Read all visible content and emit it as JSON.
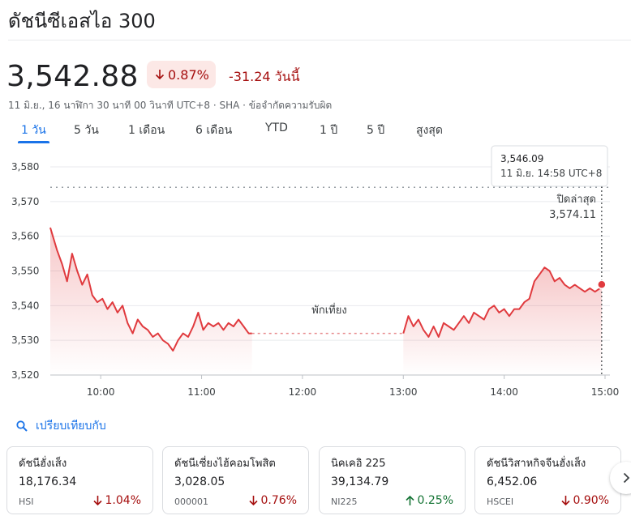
{
  "header": {
    "title": "ดัชนีซีเอสไอ 300"
  },
  "quote": {
    "price": "3,542.88",
    "change_pct": "0.87%",
    "change_abs": "-31.24 วันนี้",
    "meta": "11 มิ.ย., 16 นาฬิกา 30 นาที 00 วินาที UTC+8 · SHA · ข้อจำกัดความรับผิด"
  },
  "tabs": [
    {
      "label": "1 วัน",
      "active": true
    },
    {
      "label": "5 วัน",
      "active": false
    },
    {
      "label": "1 เดือน",
      "active": false
    },
    {
      "label": "6 เดือน",
      "active": false
    },
    {
      "label": "YTD",
      "active": false
    },
    {
      "label": "1 ปี",
      "active": false
    },
    {
      "label": "5 ปี",
      "active": false
    },
    {
      "label": "สูงสุด",
      "active": false
    }
  ],
  "colors": {
    "down": "#a50e0e",
    "up": "#137333",
    "line": "#e03a3e",
    "accent": "#1a73e8"
  },
  "chart_data": {
    "type": "line",
    "ylim": [
      3520,
      3580
    ],
    "y_ticks": [
      "3,520",
      "3,530",
      "3,540",
      "3,550",
      "3,560",
      "3,570",
      "3,580"
    ],
    "x_ticks": [
      "10:00",
      "11:00",
      "12:00",
      "13:00",
      "14:00",
      "15:00"
    ],
    "prev_close": 3574.11,
    "prev_close_label": "ปิดล่าสุด",
    "prev_close_value": "3,574.11",
    "break_label": "พักเที่ยง",
    "tooltip": {
      "value": "3,546.09",
      "time": "11 มิ.ย. 14:58 UTC+8"
    },
    "session1": [
      [
        "9:30",
        3562.5
      ],
      [
        "9:34",
        3556
      ],
      [
        "9:37",
        3552
      ],
      [
        "9:40",
        3547
      ],
      [
        "9:43",
        3555
      ],
      [
        "9:46",
        3550
      ],
      [
        "9:49",
        3546
      ],
      [
        "9:52",
        3549
      ],
      [
        "9:55",
        3543
      ],
      [
        "9:58",
        3541
      ],
      [
        "10:01",
        3542
      ],
      [
        "10:04",
        3539
      ],
      [
        "10:07",
        3541
      ],
      [
        "10:10",
        3538
      ],
      [
        "10:13",
        3540
      ],
      [
        "10:16",
        3535
      ],
      [
        "10:19",
        3532
      ],
      [
        "10:22",
        3536
      ],
      [
        "10:25",
        3534
      ],
      [
        "10:28",
        3533
      ],
      [
        "10:31",
        3531
      ],
      [
        "10:34",
        3532
      ],
      [
        "10:37",
        3530
      ],
      [
        "10:40",
        3529
      ],
      [
        "10:43",
        3527
      ],
      [
        "10:46",
        3530
      ],
      [
        "10:49",
        3532
      ],
      [
        "10:52",
        3531
      ],
      [
        "10:55",
        3534
      ],
      [
        "10:58",
        3538
      ],
      [
        "11:01",
        3533
      ],
      [
        "11:04",
        3535
      ],
      [
        "11:07",
        3534
      ],
      [
        "11:10",
        3535
      ],
      [
        "11:13",
        3533
      ],
      [
        "11:16",
        3535
      ],
      [
        "11:19",
        3534
      ],
      [
        "11:22",
        3536
      ],
      [
        "11:25",
        3534
      ],
      [
        "11:28",
        3532
      ],
      [
        "11:30",
        3532
      ]
    ],
    "session2": [
      [
        "13:00",
        3532
      ],
      [
        "13:03",
        3537
      ],
      [
        "13:06",
        3534
      ],
      [
        "13:09",
        3536
      ],
      [
        "13:12",
        3533
      ],
      [
        "13:15",
        3531
      ],
      [
        "13:18",
        3534
      ],
      [
        "13:21",
        3531
      ],
      [
        "13:24",
        3535
      ],
      [
        "13:27",
        3534
      ],
      [
        "13:30",
        3533
      ],
      [
        "13:33",
        3535
      ],
      [
        "13:36",
        3537
      ],
      [
        "13:39",
        3535
      ],
      [
        "13:42",
        3538
      ],
      [
        "13:45",
        3537
      ],
      [
        "13:48",
        3536
      ],
      [
        "13:51",
        3539
      ],
      [
        "13:54",
        3540
      ],
      [
        "13:57",
        3538
      ],
      [
        "14:00",
        3539
      ],
      [
        "14:03",
        3537
      ],
      [
        "14:06",
        3539
      ],
      [
        "14:09",
        3539
      ],
      [
        "14:12",
        3541
      ],
      [
        "14:15",
        3542
      ],
      [
        "14:18",
        3547
      ],
      [
        "14:21",
        3549
      ],
      [
        "14:24",
        3551
      ],
      [
        "14:27",
        3550
      ],
      [
        "14:30",
        3547
      ],
      [
        "14:33",
        3548
      ],
      [
        "14:36",
        3546
      ],
      [
        "14:39",
        3545
      ],
      [
        "14:42",
        3546
      ],
      [
        "14:45",
        3545
      ],
      [
        "14:48",
        3544
      ],
      [
        "14:51",
        3545
      ],
      [
        "14:54",
        3544
      ],
      [
        "14:57",
        3545
      ],
      [
        "14:58",
        3546.09
      ]
    ]
  },
  "compare": {
    "label": "เปรียบเทียบกับ"
  },
  "cards": [
    {
      "name": "ดัชนีฮั่งเส็ง",
      "value": "18,176.34",
      "symbol": "HSI",
      "change": "1.04%",
      "dir": "down"
    },
    {
      "name": "ดัชนีเซี่ยงไฮ้คอมโพสิต",
      "value": "3,028.05",
      "symbol": "000001",
      "change": "0.76%",
      "dir": "down"
    },
    {
      "name": "นิคเคอิ 225",
      "value": "39,134.79",
      "symbol": "NI225",
      "change": "0.25%",
      "dir": "up"
    },
    {
      "name": "ดัชนีวิสาหกิจจีนฮั่งเส็ง",
      "value": "6,452.06",
      "symbol": "HSCEI",
      "change": "0.90%",
      "dir": "down"
    }
  ]
}
